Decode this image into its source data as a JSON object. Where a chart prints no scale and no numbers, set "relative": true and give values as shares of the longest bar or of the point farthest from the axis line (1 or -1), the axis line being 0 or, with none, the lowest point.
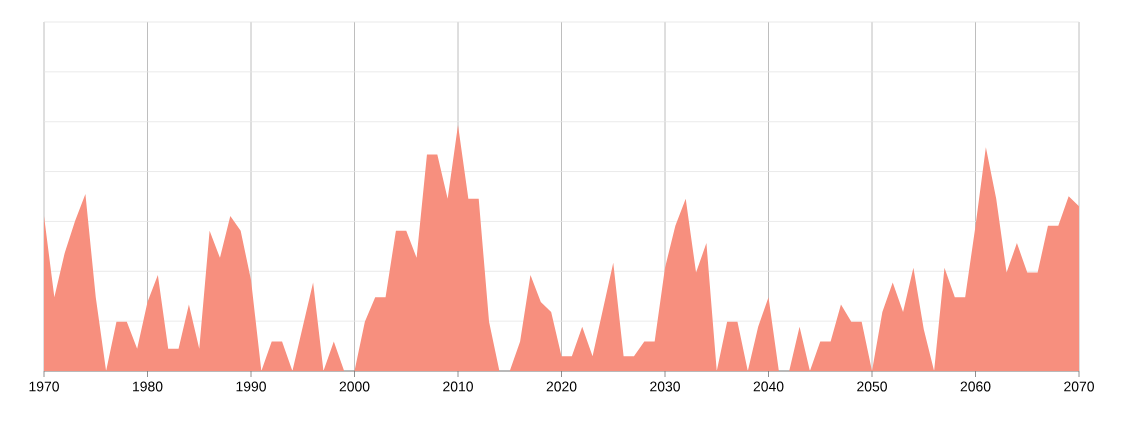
{
  "chart_data": {
    "type": "area",
    "relative": true,
    "color": "#f78f7e",
    "grid": true,
    "x": [
      1970,
      1971,
      1972,
      1973,
      1974,
      1975,
      1976,
      1977,
      1978,
      1979,
      1980,
      1981,
      1982,
      1983,
      1984,
      1985,
      1986,
      1987,
      1988,
      1989,
      1990,
      1991,
      1992,
      1993,
      1994,
      1995,
      1996,
      1997,
      1998,
      1999,
      2000,
      2001,
      2002,
      2003,
      2004,
      2005,
      2006,
      2007,
      2008,
      2009,
      2010,
      2011,
      2012,
      2013,
      2014,
      2015,
      2016,
      2017,
      2018,
      2019,
      2020,
      2021,
      2022,
      2023,
      2024,
      2025,
      2026,
      2027,
      2028,
      2029,
      2030,
      2031,
      2032,
      2033,
      2034,
      2035,
      2036,
      2037,
      2038,
      2039,
      2040,
      2041,
      2042,
      2043,
      2044,
      2045,
      2046,
      2047,
      2048,
      2049,
      2050,
      2051,
      2052,
      2053,
      2054,
      2055,
      2056,
      2057,
      2058,
      2059,
      2060,
      2061,
      2062,
      2063,
      2064,
      2065,
      2066,
      2067,
      2068,
      2069,
      2070
    ],
    "values": [
      0.63,
      0.3,
      0.48,
      0.61,
      0.72,
      0.3,
      0,
      0.2,
      0.2,
      0.09,
      0.28,
      0.39,
      0.09,
      0.09,
      0.27,
      0.09,
      0.57,
      0.46,
      0.63,
      0.57,
      0.37,
      0,
      0.12,
      0.12,
      0,
      0.18,
      0.36,
      0,
      0.12,
      0,
      0,
      0.2,
      0.3,
      0.3,
      0.57,
      0.57,
      0.46,
      0.88,
      0.88,
      0.7,
      1,
      0.7,
      0.7,
      0.2,
      0,
      0,
      0.12,
      0.39,
      0.28,
      0.24,
      0.06,
      0.06,
      0.18,
      0.06,
      0.25,
      0.44,
      0.06,
      0.06,
      0.12,
      0.12,
      0.42,
      0.59,
      0.7,
      0.4,
      0.52,
      0,
      0.2,
      0.2,
      0,
      0.18,
      0.3,
      0,
      0,
      0.18,
      0,
      0.12,
      0.12,
      0.27,
      0.2,
      0.2,
      0,
      0.24,
      0.36,
      0.24,
      0.42,
      0.17,
      0,
      0.42,
      0.3,
      0.3,
      0.59,
      0.91,
      0.7,
      0.4,
      0.52,
      0.4,
      0.4,
      0.59,
      0.59,
      0.71,
      0.67
    ],
    "xlim": [
      1970,
      2070
    ],
    "xticks": [
      1970,
      1980,
      1990,
      2000,
      2010,
      2020,
      2030,
      2040,
      2050,
      2060,
      2070
    ]
  }
}
